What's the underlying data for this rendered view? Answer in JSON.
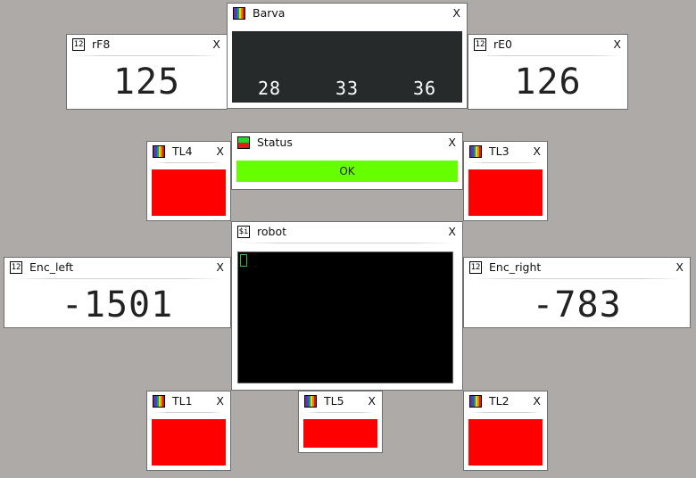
{
  "windows": {
    "barva": {
      "title": "Barva",
      "close": "X",
      "values": [
        "28",
        "33",
        "36"
      ]
    },
    "rf8": {
      "title": "rF8",
      "close": "X",
      "value": "125",
      "icon": "12"
    },
    "re0": {
      "title": "rE0",
      "close": "X",
      "value": "126",
      "icon": "12"
    },
    "status": {
      "title": "Status",
      "close": "X",
      "state": "OK"
    },
    "tl4": {
      "title": "TL4",
      "close": "X"
    },
    "tl3": {
      "title": "TL3",
      "close": "X"
    },
    "robot": {
      "title": "robot",
      "close": "X",
      "icon": "$i"
    },
    "enc_left": {
      "title": "Enc_left",
      "close": "X",
      "value": "-1501",
      "icon": "12"
    },
    "enc_right": {
      "title": "Enc_right",
      "close": "X",
      "value": "-783",
      "icon": "12"
    },
    "tl1": {
      "title": "TL1",
      "close": "X"
    },
    "tl5": {
      "title": "TL5",
      "close": "X"
    },
    "tl2": {
      "title": "TL2",
      "close": "X"
    }
  },
  "colors": {
    "background": "#aeaaa7",
    "indicator_red": "#ff0000",
    "status_ok": "#66ff00",
    "terminal_bg": "#000000",
    "barva_bg": "#262a2b"
  },
  "icons": {
    "numeric": "numeric-icon",
    "color": "color-bars-icon",
    "status": "status-icon",
    "terminal": "terminal-icon"
  }
}
